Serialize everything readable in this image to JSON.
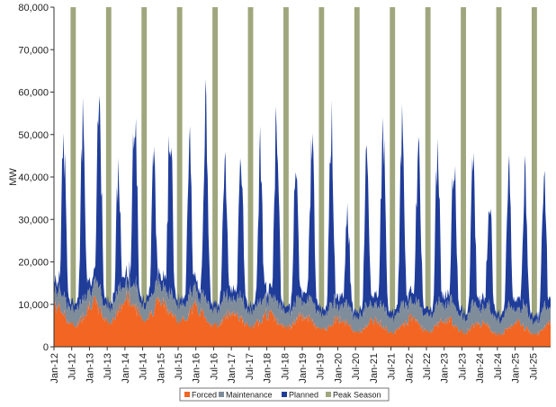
{
  "chart_data": {
    "type": "area",
    "ylabel": "MW",
    "xlabel": "",
    "ylim": [
      0,
      80000
    ],
    "yticks": [
      "0",
      "10,000",
      "20,000",
      "30,000",
      "40,000",
      "50,000",
      "60,000",
      "70,000",
      "80,000"
    ],
    "ytick_values": [
      0,
      10000,
      20000,
      30000,
      40000,
      50000,
      60000,
      70000,
      80000
    ],
    "xlim": [
      "2012-01",
      "2025-12"
    ],
    "xticks": [
      "Jan-12",
      "Jul-12",
      "Jan-13",
      "Jul-13",
      "Jan-14",
      "Jul-14",
      "Jan-15",
      "Jul-15",
      "Jan-16",
      "Jul-16",
      "Jan-17",
      "Jul-17",
      "Jan-18",
      "Jul-18",
      "Jan-19",
      "Jul-19",
      "Jan-20",
      "Jul-20",
      "Jan-21",
      "Jul-21",
      "Jan-22",
      "Jul-22",
      "Jan-23",
      "Jul-23",
      "Jan-24",
      "Jul-24",
      "Jan-25",
      "Jul-25"
    ],
    "stacked": true,
    "legend_position": "bottom",
    "grid": false,
    "series": [
      {
        "name": "Forced",
        "color": "#f26522",
        "peak_by_year": [
          9500,
          10500,
          11500,
          10000,
          8500,
          8000,
          7500,
          7000,
          6500,
          6000,
          7000,
          6500,
          5500,
          5500
        ],
        "trough_by_year": [
          5000,
          6000,
          6500,
          6000,
          5000,
          4500,
          4500,
          4000,
          3500,
          3500,
          3500,
          3500,
          3000,
          3000
        ]
      },
      {
        "name": "Maintenance",
        "color": "#7f8c99",
        "peak_by_year": [
          5000,
          5000,
          5500,
          5000,
          5000,
          5000,
          5000,
          5000,
          5000,
          5000,
          5000,
          5000,
          5000,
          5000
        ],
        "trough_by_year": [
          3500,
          3500,
          3500,
          3500,
          3500,
          3500,
          3500,
          3500,
          3500,
          3500,
          3500,
          3500,
          3500,
          3000
        ]
      },
      {
        "name": "Planned",
        "color": "#1f3c99",
        "spring_peak_by_year": [
          48000,
          58000,
          60000,
          54000,
          58000,
          46000,
          55000,
          49000,
          33000,
          51000,
          48000,
          47000,
          37000,
          41000
        ],
        "fall_peak_by_year": [
          55000,
          43000,
          47000,
          50000,
          47000,
          47000,
          47000,
          54000,
          47000,
          53000,
          47000,
          45000,
          43000,
          42000
        ],
        "summer_floor": 1500,
        "winter_floor": 2500
      },
      {
        "name": "Peak Season",
        "color": "#a0a67d",
        "value": 80000,
        "months": [
          "Jun",
          "Jul",
          "Aug"
        ]
      }
    ]
  }
}
